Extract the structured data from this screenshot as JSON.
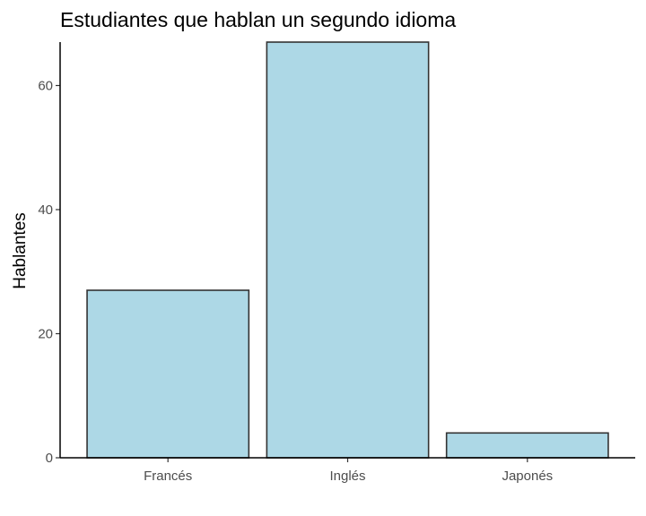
{
  "chart_data": {
    "type": "bar",
    "title": "Estudiantes que hablan un segundo idioma",
    "xlabel": "",
    "ylabel": "Hablantes",
    "categories": [
      "Francés",
      "Inglés",
      "Japonés"
    ],
    "values": [
      27,
      67,
      4
    ],
    "ylim": [
      0,
      67
    ],
    "yticks": [
      0,
      20,
      40,
      60
    ],
    "ytick_labels": [
      "0",
      "20",
      "40",
      "60"
    ],
    "grid": false,
    "legend": "none",
    "bar_color": "#add8e6",
    "bar_outline_color": "#333333"
  }
}
